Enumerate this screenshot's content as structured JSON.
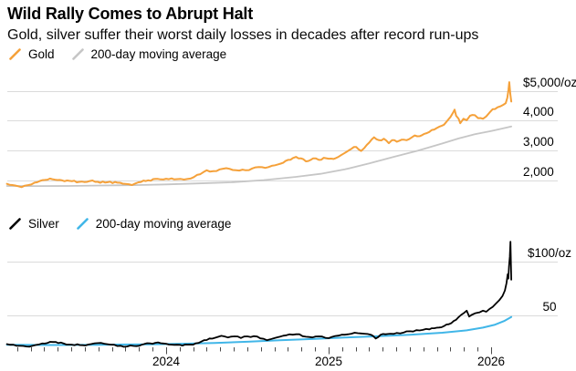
{
  "header": {
    "title": "Wild Rally Comes to Abrupt Halt",
    "subtitle": "Gold, silver suffer their worst daily losses in decades after record run-ups"
  },
  "colors": {
    "gold": "#F5A13A",
    "gray_ma": "#C6C6C6",
    "silver": "#000000",
    "blue_ma": "#41B6E8",
    "gridline": "#DBDBDB",
    "tick": "#4A4A4A"
  },
  "x_axis": {
    "year_ticks": [
      {
        "t": 2024,
        "label": "2024"
      },
      {
        "t": 2025,
        "label": "2025"
      },
      {
        "t": 2026,
        "label": "2026"
      }
    ],
    "minor_ticks": {
      "start_t": 2023.0833,
      "step": 0.08333,
      "count": 36
    }
  },
  "chart_data": [
    {
      "id": "gold",
      "type": "line",
      "title": "Gold price and 200-day moving average",
      "legend": [
        {
          "label": "Gold",
          "color": "#F5A13A"
        },
        {
          "label": "200-day moving average",
          "color": "#C6C6C6"
        }
      ],
      "xlim": [
        2023.0,
        2026.35
      ],
      "ylim": [
        1620,
        5600
      ],
      "label_align": "left",
      "grid": true,
      "y_ticks": [
        {
          "v": 5000,
          "label": "$5,000/oz"
        },
        {
          "v": 4000,
          "label": "4,000"
        },
        {
          "v": 3000,
          "label": "3,000"
        },
        {
          "v": 2000,
          "label": "2,000"
        }
      ],
      "series": [
        {
          "id": "gold-ma",
          "name": "200-day moving average",
          "color": "#C6C6C6",
          "width": 1.8,
          "jitter": 0,
          "points": [
            [
              2023.02,
              1805
            ],
            [
              2023.2,
              1800
            ],
            [
              2023.4,
              1805
            ],
            [
              2023.6,
              1820
            ],
            [
              2023.8,
              1830
            ],
            [
              2024.0,
              1855
            ],
            [
              2024.2,
              1890
            ],
            [
              2024.4,
              1925
            ],
            [
              2024.6,
              2000
            ],
            [
              2024.8,
              2110
            ],
            [
              2024.95,
              2210
            ],
            [
              2025.1,
              2360
            ],
            [
              2025.25,
              2560
            ],
            [
              2025.4,
              2780
            ],
            [
              2025.55,
              2990
            ],
            [
              2025.7,
              3230
            ],
            [
              2025.8,
              3400
            ],
            [
              2025.9,
              3540
            ],
            [
              2026.0,
              3650
            ],
            [
              2026.06,
              3720
            ],
            [
              2026.124,
              3800
            ]
          ]
        },
        {
          "id": "gold-line",
          "name": "Gold",
          "color": "#F5A13A",
          "width": 2,
          "jitter": 1.0,
          "points": [
            [
              2023.02,
              1875
            ],
            [
              2023.07,
              1820
            ],
            [
              2023.11,
              1765
            ],
            [
              2023.15,
              1830
            ],
            [
              2023.19,
              1915
            ],
            [
              2023.24,
              2000
            ],
            [
              2023.3,
              2030
            ],
            [
              2023.36,
              1990
            ],
            [
              2023.42,
              1965
            ],
            [
              2023.48,
              1950
            ],
            [
              2023.53,
              1970
            ],
            [
              2023.58,
              1940
            ],
            [
              2023.64,
              1930
            ],
            [
              2023.7,
              1915
            ],
            [
              2023.75,
              1870
            ],
            [
              2023.79,
              1835
            ],
            [
              2023.83,
              1925
            ],
            [
              2023.89,
              1995
            ],
            [
              2023.95,
              2040
            ],
            [
              2024.0,
              2045
            ],
            [
              2024.05,
              2025
            ],
            [
              2024.09,
              2040
            ],
            [
              2024.13,
              2035
            ],
            [
              2024.17,
              2100
            ],
            [
              2024.21,
              2200
            ],
            [
              2024.25,
              2330
            ],
            [
              2024.29,
              2300
            ],
            [
              2024.33,
              2360
            ],
            [
              2024.37,
              2400
            ],
            [
              2024.41,
              2340
            ],
            [
              2024.45,
              2320
            ],
            [
              2024.49,
              2330
            ],
            [
              2024.53,
              2390
            ],
            [
              2024.57,
              2440
            ],
            [
              2024.61,
              2410
            ],
            [
              2024.65,
              2480
            ],
            [
              2024.69,
              2530
            ],
            [
              2024.72,
              2580
            ],
            [
              2024.75,
              2680
            ],
            [
              2024.78,
              2740
            ],
            [
              2024.8,
              2780
            ],
            [
              2024.83,
              2730
            ],
            [
              2024.86,
              2630
            ],
            [
              2024.89,
              2680
            ],
            [
              2024.92,
              2730
            ],
            [
              2024.94,
              2680
            ],
            [
              2024.97,
              2750
            ],
            [
              2025.0,
              2720
            ],
            [
              2025.03,
              2710
            ],
            [
              2025.06,
              2780
            ],
            [
              2025.09,
              2880
            ],
            [
              2025.11,
              2950
            ],
            [
              2025.14,
              3050
            ],
            [
              2025.17,
              3110
            ],
            [
              2025.2,
              2980
            ],
            [
              2025.22,
              3080
            ],
            [
              2025.25,
              3260
            ],
            [
              2025.28,
              3440
            ],
            [
              2025.31,
              3340
            ],
            [
              2025.34,
              3390
            ],
            [
              2025.37,
              3240
            ],
            [
              2025.39,
              3340
            ],
            [
              2025.42,
              3290
            ],
            [
              2025.45,
              3360
            ],
            [
              2025.48,
              3340
            ],
            [
              2025.51,
              3430
            ],
            [
              2025.53,
              3500
            ],
            [
              2025.56,
              3475
            ],
            [
              2025.59,
              3555
            ],
            [
              2025.62,
              3620
            ],
            [
              2025.65,
              3700
            ],
            [
              2025.68,
              3790
            ],
            [
              2025.71,
              3860
            ],
            [
              2025.73,
              3990
            ],
            [
              2025.75,
              4120
            ],
            [
              2025.765,
              4260
            ],
            [
              2025.775,
              4365
            ],
            [
              2025.785,
              4160
            ],
            [
              2025.8,
              4060
            ],
            [
              2025.81,
              3910
            ],
            [
              2025.83,
              4060
            ],
            [
              2025.85,
              4010
            ],
            [
              2025.87,
              4160
            ],
            [
              2025.9,
              4180
            ],
            [
              2025.92,
              4080
            ],
            [
              2025.95,
              4060
            ],
            [
              2025.97,
              4140
            ],
            [
              2025.99,
              4265
            ],
            [
              2026.01,
              4385
            ],
            [
              2026.04,
              4445
            ],
            [
              2026.06,
              4485
            ],
            [
              2026.09,
              4585
            ],
            [
              2026.1,
              4770
            ],
            [
              2026.107,
              5030
            ],
            [
              2026.112,
              5290
            ],
            [
              2026.118,
              4900
            ],
            [
              2026.124,
              4640
            ]
          ]
        }
      ]
    },
    {
      "id": "silver",
      "type": "line",
      "title": "Silver price and 200-day moving average",
      "legend": [
        {
          "label": "Silver",
          "color": "#000000"
        },
        {
          "label": "200-day moving average",
          "color": "#41B6E8"
        }
      ],
      "xlim": [
        2023.0,
        2026.35
      ],
      "ylim": [
        15,
        124
      ],
      "label_align": "center",
      "grid": true,
      "y_ticks": [
        {
          "v": 100,
          "label": "$100/oz"
        },
        {
          "v": 50,
          "label": "50"
        }
      ],
      "series": [
        {
          "id": "silver-ma",
          "name": "200-day moving average",
          "color": "#41B6E8",
          "width": 2,
          "jitter": 0,
          "points": [
            [
              2023.02,
              23.2
            ],
            [
              2023.3,
              23.0
            ],
            [
              2023.6,
              23.2
            ],
            [
              2023.9,
              23.6
            ],
            [
              2024.1,
              24.1
            ],
            [
              2024.3,
              24.9
            ],
            [
              2024.5,
              26.0
            ],
            [
              2024.7,
              27.3
            ],
            [
              2024.9,
              28.5
            ],
            [
              2025.1,
              29.8
            ],
            [
              2025.3,
              31.0
            ],
            [
              2025.5,
              32.4
            ],
            [
              2025.7,
              34.3
            ],
            [
              2025.85,
              36.5
            ],
            [
              2025.95,
              39.0
            ],
            [
              2026.02,
              41.5
            ],
            [
              2026.08,
              45.0
            ],
            [
              2026.124,
              48.8
            ]
          ]
        },
        {
          "id": "silver-line",
          "name": "Silver",
          "color": "#000000",
          "width": 1.8,
          "jitter": 0.9,
          "points": [
            [
              2023.02,
              23.8
            ],
            [
              2023.06,
              23.2
            ],
            [
              2023.1,
              22.2
            ],
            [
              2023.14,
              21.6
            ],
            [
              2023.18,
              22.3
            ],
            [
              2023.22,
              23.6
            ],
            [
              2023.27,
              24.9
            ],
            [
              2023.32,
              25.8
            ],
            [
              2023.37,
              24.3
            ],
            [
              2023.42,
              23.3
            ],
            [
              2023.47,
              22.9
            ],
            [
              2023.52,
              23.4
            ],
            [
              2023.56,
              24.6
            ],
            [
              2023.6,
              24.9
            ],
            [
              2023.64,
              23.7
            ],
            [
              2023.68,
              23.2
            ],
            [
              2023.72,
              22.3
            ],
            [
              2023.76,
              21.6
            ],
            [
              2023.8,
              22.1
            ],
            [
              2023.85,
              23.2
            ],
            [
              2023.9,
              24.6
            ],
            [
              2023.95,
              25.4
            ],
            [
              2024.0,
              24.1
            ],
            [
              2024.05,
              23.1
            ],
            [
              2024.1,
              22.5
            ],
            [
              2024.15,
              23.4
            ],
            [
              2024.2,
              24.9
            ],
            [
              2024.25,
              27.6
            ],
            [
              2024.3,
              29.6
            ],
            [
              2024.34,
              31.4
            ],
            [
              2024.38,
              29.9
            ],
            [
              2024.42,
              30.9
            ],
            [
              2024.46,
              29.4
            ],
            [
              2024.5,
              30.9
            ],
            [
              2024.54,
              31.1
            ],
            [
              2024.58,
              29.1
            ],
            [
              2024.62,
              27.4
            ],
            [
              2024.66,
              29.1
            ],
            [
              2024.7,
              30.6
            ],
            [
              2024.74,
              31.9
            ],
            [
              2024.78,
              32.4
            ],
            [
              2024.82,
              32.9
            ],
            [
              2024.86,
              30.6
            ],
            [
              2024.9,
              29.9
            ],
            [
              2024.94,
              30.9
            ],
            [
              2024.98,
              29.6
            ],
            [
              2025.02,
              30.4
            ],
            [
              2025.06,
              31.6
            ],
            [
              2025.1,
              32.4
            ],
            [
              2025.14,
              33.4
            ],
            [
              2025.18,
              33.9
            ],
            [
              2025.22,
              33.4
            ],
            [
              2025.26,
              32.4
            ],
            [
              2025.29,
              28.9
            ],
            [
              2025.32,
              32.4
            ],
            [
              2025.35,
              32.9
            ],
            [
              2025.38,
              33.4
            ],
            [
              2025.42,
              34.1
            ],
            [
              2025.46,
              34.4
            ],
            [
              2025.5,
              35.6
            ],
            [
              2025.54,
              36.6
            ],
            [
              2025.58,
              36.9
            ],
            [
              2025.62,
              37.4
            ],
            [
              2025.65,
              38.4
            ],
            [
              2025.68,
              39.1
            ],
            [
              2025.71,
              40.4
            ],
            [
              2025.74,
              42.1
            ],
            [
              2025.77,
              45.1
            ],
            [
              2025.8,
              48.6
            ],
            [
              2025.83,
              52.1
            ],
            [
              2025.85,
              54.6
            ],
            [
              2025.865,
              49.1
            ],
            [
              2025.88,
              50.6
            ],
            [
              2025.9,
              52.1
            ],
            [
              2025.93,
              53.1
            ],
            [
              2025.95,
              54.6
            ],
            [
              2025.97,
              53.6
            ],
            [
              2025.99,
              56.1
            ],
            [
              2026.01,
              58.1
            ],
            [
              2026.03,
              61.1
            ],
            [
              2026.05,
              64.1
            ],
            [
              2026.07,
              68.1
            ],
            [
              2026.085,
              73.1
            ],
            [
              2026.095,
              80.1
            ],
            [
              2026.102,
              88.1
            ],
            [
              2026.106,
              84.1
            ],
            [
              2026.11,
              95.1
            ],
            [
              2026.115,
              104.1
            ],
            [
              2026.119,
              118.0
            ],
            [
              2026.124,
              83.0
            ]
          ]
        }
      ]
    }
  ]
}
